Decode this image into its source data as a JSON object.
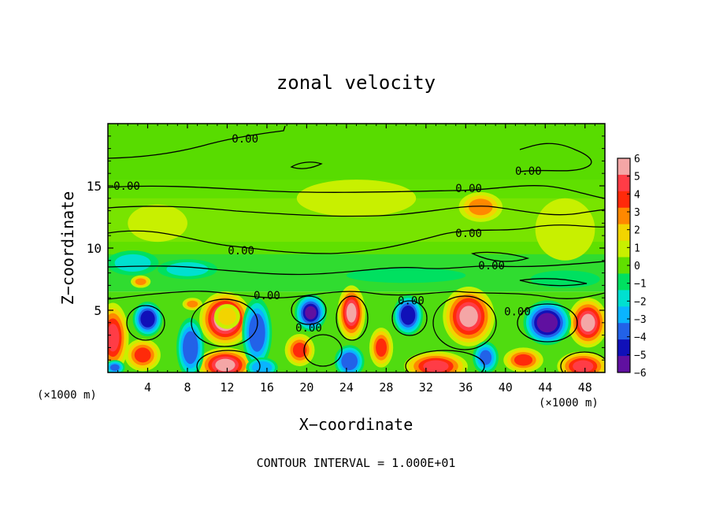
{
  "chart_data": {
    "type": "heatmap",
    "title": "zonal velocity",
    "xlabel": "X−coordinate",
    "ylabel": "Z−coordinate",
    "x_unit": "(×1000 m)",
    "x_unit_right": "(×1000 m)",
    "footer": "CONTOUR INTERVAL = 1.000E+01",
    "xlim": [
      0,
      50
    ],
    "ylim": [
      0,
      20
    ],
    "x_ticks": [
      "4",
      "8",
      "12",
      "16",
      "20",
      "24",
      "28",
      "32",
      "36",
      "40",
      "44",
      "48"
    ],
    "x_tick_values": [
      4,
      8,
      12,
      16,
      20,
      24,
      28,
      32,
      36,
      40,
      44,
      48
    ],
    "y_ticks": [
      "5",
      "10",
      "15"
    ],
    "y_tick_values": [
      5,
      10,
      15
    ],
    "colorbar": {
      "labels": [
        "6",
        "5",
        "4",
        "3",
        "2",
        "1",
        "0",
        "−1",
        "−2",
        "−3",
        "−4",
        "−5",
        "−6"
      ],
      "values": [
        6,
        5,
        4,
        3,
        2,
        1,
        0,
        -1,
        -2,
        -3,
        -4,
        -5,
        -6
      ],
      "colors": [
        "#f4a6a6",
        "#ff3c46",
        "#ff2a0a",
        "#ff8800",
        "#f2d400",
        "#c8f000",
        "#60e000",
        "#00e060",
        "#00e0d0",
        "#0ab4ff",
        "#2262e8",
        "#1010b8",
        "#6010a0"
      ]
    },
    "contour_labels": [
      {
        "text": "0.00",
        "x": 13.8,
        "z": 18.8
      },
      {
        "text": "0.00",
        "x": 1.9,
        "z": 15.0
      },
      {
        "text": "0.00",
        "x": 42.3,
        "z": 16.2
      },
      {
        "text": "0.00",
        "x": 36.3,
        "z": 14.8
      },
      {
        "text": "0.00",
        "x": 36.3,
        "z": 11.2
      },
      {
        "text": "0.00",
        "x": 13.4,
        "z": 9.8
      },
      {
        "text": "0.00",
        "x": 38.6,
        "z": 8.6
      },
      {
        "text": "0.00",
        "x": 16.0,
        "z": 6.2
      },
      {
        "text": "0.00",
        "x": 30.5,
        "z": 5.8
      },
      {
        "text": "0.00",
        "x": 20.2,
        "z": 3.6
      },
      {
        "text": "0.00",
        "x": 41.2,
        "z": 4.9
      }
    ],
    "blobs": [
      {
        "x": 11.8,
        "z": 4.3,
        "rx": 2.6,
        "rz": 2.2,
        "v": 6.5
      },
      {
        "x": 12.0,
        "z": 4.5,
        "rx": 1.3,
        "rz": 1.0,
        "v": 2.0
      },
      {
        "x": 24.5,
        "z": 4.8,
        "rx": 1.4,
        "rz": 2.2,
        "v": 5.5
      },
      {
        "x": 36.3,
        "z": 4.5,
        "rx": 2.6,
        "rz": 2.4,
        "v": 6.0
      },
      {
        "x": 48.3,
        "z": 4.0,
        "rx": 2.0,
        "rz": 2.0,
        "v": 6.0
      },
      {
        "x": 11.8,
        "z": 0.6,
        "rx": 2.8,
        "rz": 1.4,
        "v": 5.5
      },
      {
        "x": 33.0,
        "z": 0.5,
        "rx": 3.2,
        "rz": 1.2,
        "v": 5.0
      },
      {
        "x": 47.8,
        "z": 0.5,
        "rx": 2.6,
        "rz": 1.2,
        "v": 5.0
      },
      {
        "x": 19.3,
        "z": 1.8,
        "rx": 1.5,
        "rz": 1.3,
        "v": 4.0
      },
      {
        "x": 27.5,
        "z": 2.0,
        "rx": 1.2,
        "rz": 1.6,
        "v": 3.5
      },
      {
        "x": 41.8,
        "z": 1.0,
        "rx": 2.0,
        "rz": 1.0,
        "v": 4.0
      },
      {
        "x": 3.5,
        "z": 1.4,
        "rx": 1.8,
        "rz": 1.3,
        "v": 3.5
      },
      {
        "x": 0.5,
        "z": 2.8,
        "rx": 1.6,
        "rz": 2.8,
        "v": 4.5
      },
      {
        "x": 8.5,
        "z": 5.5,
        "rx": 1.0,
        "rz": 0.5,
        "v": 3.0
      },
      {
        "x": 3.3,
        "z": 7.3,
        "rx": 1.0,
        "rz": 0.5,
        "v": 3.0
      },
      {
        "x": 4.0,
        "z": 4.3,
        "rx": 1.5,
        "rz": 1.4,
        "v": -5.5
      },
      {
        "x": 8.3,
        "z": 2.0,
        "rx": 1.4,
        "rz": 2.4,
        "v": -4.5
      },
      {
        "x": 15.0,
        "z": 3.2,
        "rx": 1.5,
        "rz": 2.8,
        "v": -4.5
      },
      {
        "x": 20.4,
        "z": 4.8,
        "rx": 1.6,
        "rz": 1.5,
        "v": -6.0
      },
      {
        "x": 24.3,
        "z": 0.9,
        "rx": 1.5,
        "rz": 1.3,
        "v": -4.5
      },
      {
        "x": 30.2,
        "z": 4.6,
        "rx": 1.5,
        "rz": 1.6,
        "v": -5.5
      },
      {
        "x": 44.2,
        "z": 4.0,
        "rx": 2.4,
        "rz": 1.8,
        "v": -6.5
      },
      {
        "x": 38.0,
        "z": 1.2,
        "rx": 1.3,
        "rz": 1.3,
        "v": -4.0
      },
      {
        "x": 15.5,
        "z": 0.4,
        "rx": 1.6,
        "rz": 0.8,
        "v": -3.5
      },
      {
        "x": 0.7,
        "z": 0.4,
        "rx": 1.0,
        "rz": 0.6,
        "v": -4.0
      },
      {
        "x": 8.0,
        "z": 8.3,
        "rx": 3.0,
        "rz": 0.8,
        "v": -2.0
      },
      {
        "x": 2.5,
        "z": 8.8,
        "rx": 2.6,
        "rz": 1.0,
        "v": -1.8
      },
      {
        "x": 30.0,
        "z": 7.8,
        "rx": 6.0,
        "rz": 0.6,
        "v": -1.5
      },
      {
        "x": 46.0,
        "z": 7.5,
        "rx": 3.5,
        "rz": 0.7,
        "v": -1.5
      },
      {
        "x": 37.5,
        "z": 13.3,
        "rx": 2.2,
        "rz": 1.2,
        "v": 2.5
      },
      {
        "x": 46.0,
        "z": 11.5,
        "rx": 3.0,
        "rz": 2.5,
        "v": 1.3
      },
      {
        "x": 25.0,
        "z": 14.0,
        "rx": 6.0,
        "rz": 1.5,
        "v": 0.8
      },
      {
        "x": 5.0,
        "z": 12.0,
        "rx": 3.0,
        "rz": 1.5,
        "v": 0.8
      }
    ]
  }
}
